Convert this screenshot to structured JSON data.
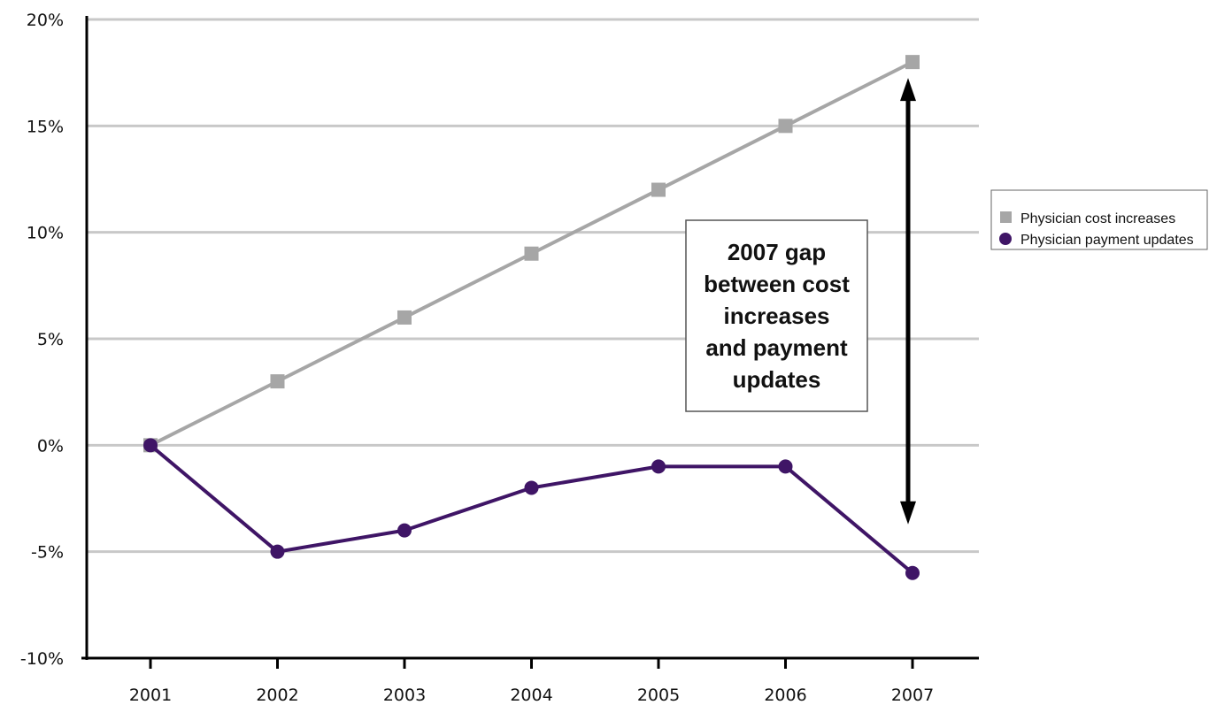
{
  "chart_data": {
    "type": "line",
    "title": "",
    "xlabel": "",
    "ylabel": "",
    "x": [
      "2001",
      "2002",
      "2003",
      "2004",
      "2005",
      "2006",
      "2007"
    ],
    "y_ticks": [
      "20%",
      "15%",
      "10%",
      "5%",
      "0%",
      "-5%",
      "-10%"
    ],
    "ylim": [
      -10,
      20
    ],
    "grid": true,
    "legend_position": "right",
    "series": [
      {
        "name": "Physician cost increases",
        "values": [
          0,
          3,
          6,
          9,
          12,
          15,
          18
        ],
        "color": "#a6a6a6",
        "marker": "square"
      },
      {
        "name": "Physician payment updates",
        "values": [
          0,
          -5,
          -4,
          -2,
          -1,
          -1,
          -6
        ],
        "color": "#3f1566",
        "marker": "circle"
      }
    ],
    "annotation": {
      "lines": [
        "2007 gap",
        "between cost",
        "increases",
        "and payment",
        "updates"
      ],
      "arrow_year": "2007",
      "arrow_from": 18,
      "arrow_to": -6
    }
  }
}
